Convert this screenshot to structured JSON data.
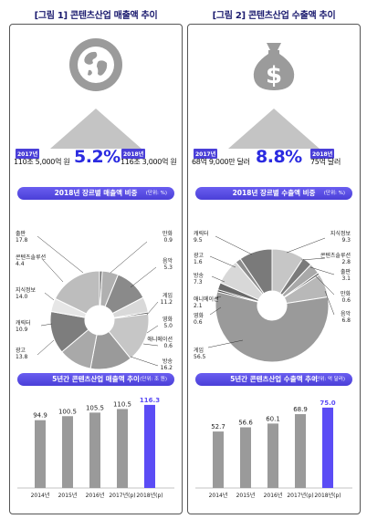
{
  "left": {
    "figure_title": "[그림 1] 콘텐츠산업 매출액 추이",
    "icon": "globe-icon",
    "stat_from": {
      "year": "2017년",
      "value": "110조 5,000억 원"
    },
    "growth": "5.2%",
    "stat_to": {
      "year": "2018년",
      "value": "116조 3,000억 원"
    },
    "pie_section": {
      "title": "2018년 장르별 매출액 비중",
      "unit": "(단위: %)"
    },
    "bar_section": {
      "title": "5년간 콘텐츠산업 매출액 추이",
      "unit": "(단위: 조 원)"
    }
  },
  "right": {
    "figure_title": "[그림 2] 콘텐츠산업 수출액 추이",
    "icon": "money-bag-icon",
    "stat_from": {
      "year": "2017년",
      "value": "68억 9,000만 달러"
    },
    "growth": "8.8%",
    "stat_to": {
      "year": "2018년",
      "value": "75억 달러"
    },
    "pie_section": {
      "title": "2018년 장르별 수출액 비중",
      "unit": "(단위: %)"
    },
    "bar_section": {
      "title": "5년간 콘텐츠산업 수출액 추이",
      "unit": "(단위: 억 달러)"
    }
  },
  "colors": {
    "accent": "#4a3fd8",
    "accent_bar": "#5b4cf5",
    "gray_bar": "#9a9a9a",
    "growth_text": "#2b2be0"
  },
  "chart_data": [
    {
      "type": "pie",
      "title": "2018년 장르별 매출액 비중",
      "unit": "(단위: %)",
      "slices": [
        {
          "name": "만화",
          "value": 0.9
        },
        {
          "name": "음악",
          "value": 5.3
        },
        {
          "name": "게임",
          "value": 11.2
        },
        {
          "name": "영화",
          "value": 5.0
        },
        {
          "name": "애니메이션",
          "value": 0.6
        },
        {
          "name": "방송",
          "value": 16.2
        },
        {
          "name": "광고",
          "value": 13.8
        },
        {
          "name": "캐릭터",
          "value": 10.9
        },
        {
          "name": "지식정보",
          "value": 14.0
        },
        {
          "name": "콘텐츠솔루션",
          "value": 4.4
        },
        {
          "name": "출판",
          "value": 17.8
        }
      ]
    },
    {
      "type": "bar",
      "title": "5년간 콘텐츠산업 매출액 추이",
      "unit": "(단위: 조 원)",
      "categories": [
        "2014년",
        "2015년",
        "2016년",
        "2017년(p)",
        "2018년(p)"
      ],
      "values": [
        94.9,
        100.5,
        105.5,
        110.5,
        116.3
      ],
      "value_labels": [
        "94.9",
        "100.5",
        "105.5",
        "110.5",
        "116.3"
      ],
      "highlight_index": 4
    },
    {
      "type": "pie",
      "title": "2018년 장르별 수출액 비중",
      "unit": "(단위: %)",
      "slices": [
        {
          "name": "지식정보",
          "value": 9.3
        },
        {
          "name": "콘텐츠솔루션",
          "value": 2.8
        },
        {
          "name": "출판",
          "value": 3.1
        },
        {
          "name": "만화",
          "value": 0.6
        },
        {
          "name": "음악",
          "value": 6.8
        },
        {
          "name": "게임",
          "value": 56.5
        },
        {
          "name": "영화",
          "value": 0.6
        },
        {
          "name": "애니메이션",
          "value": 2.1
        },
        {
          "name": "방송",
          "value": 7.3
        },
        {
          "name": "광고",
          "value": 1.6
        },
        {
          "name": "캐릭터",
          "value": 9.5
        }
      ]
    },
    {
      "type": "bar",
      "title": "5년간 콘텐츠산업 수출액 추이",
      "unit": "(단위: 억 달러)",
      "categories": [
        "2014년",
        "2015년",
        "2016년",
        "2017년(p)",
        "2018년(p)"
      ],
      "values": [
        52.7,
        56.6,
        60.1,
        68.9,
        75.0
      ],
      "value_labels": [
        "52.7",
        "56.6",
        "60.1",
        "68.9",
        "75.0"
      ],
      "highlight_index": 4
    }
  ]
}
